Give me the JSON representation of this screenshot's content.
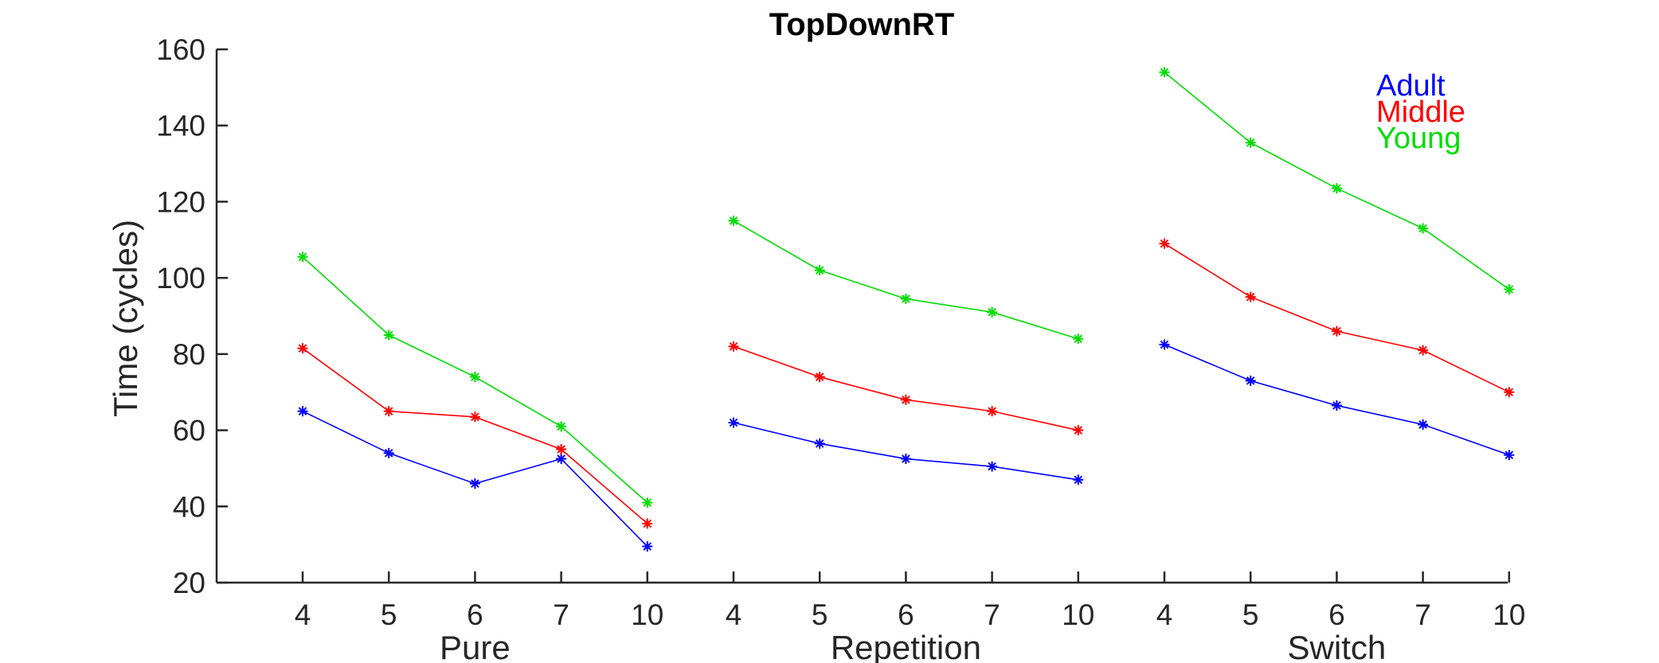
{
  "chart_data": {
    "type": "line",
    "title": "TopDownRT",
    "ylabel": "Time (cycles)",
    "ylim": [
      20,
      160
    ],
    "yticks": [
      20,
      40,
      60,
      80,
      100,
      120,
      140,
      160
    ],
    "groups": [
      {
        "name": "Pure",
        "categories": [
          "4",
          "5",
          "6",
          "7",
          "10"
        ]
      },
      {
        "name": "Repetition",
        "categories": [
          "4",
          "5",
          "6",
          "7",
          "10"
        ]
      },
      {
        "name": "Switch",
        "categories": [
          "4",
          "5",
          "6",
          "7",
          "10"
        ]
      }
    ],
    "series": [
      {
        "name": "Adult",
        "color": "#0000ff",
        "values": [
          [
            65,
            54,
            46,
            52.5,
            29.5
          ],
          [
            62,
            56.5,
            52.5,
            50.5,
            47
          ],
          [
            82.5,
            73,
            66.5,
            61.5,
            53.5
          ]
        ]
      },
      {
        "name": "Middle",
        "color": "#ff0000",
        "values": [
          [
            81.5,
            65,
            63.5,
            55,
            35.5
          ],
          [
            82,
            74,
            68,
            65,
            60
          ],
          [
            109,
            95,
            86,
            81,
            70
          ]
        ]
      },
      {
        "name": "Young",
        "color": "#00dd00",
        "values": [
          [
            105.5,
            85,
            74,
            61,
            41
          ],
          [
            115,
            102,
            94.5,
            91,
            84
          ],
          [
            154,
            135.5,
            123.5,
            113,
            97
          ]
        ]
      }
    ],
    "legend_position": "top-right",
    "grid": false
  }
}
